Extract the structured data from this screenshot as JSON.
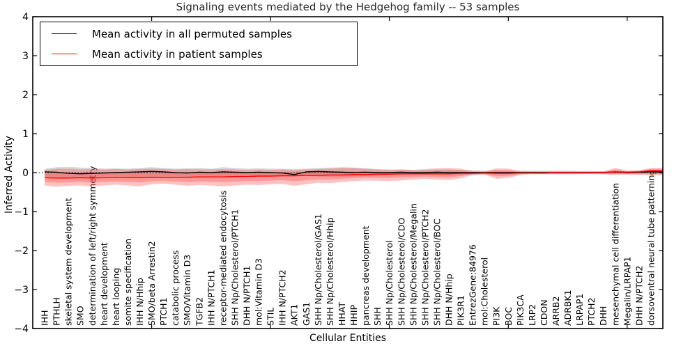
{
  "title": "Signaling events mediated by the Hedgehog family -- 53 samples",
  "legend": {
    "items": [
      {
        "label": "Mean activity in all permuted samples",
        "color": "#000000"
      },
      {
        "label": "Mean activity in patient samples",
        "color": "#ff0000"
      }
    ]
  },
  "colors": {
    "permuted_line": "#000000",
    "patient_line": "#ff0000",
    "permuted_band": "#999999",
    "patient_band": "#ff4040",
    "frame": "#000000"
  },
  "chart_data": {
    "type": "line",
    "title": "Signaling events mediated by the Hedgehog family -- 53 samples",
    "xlabel": "Cellular Entities",
    "ylabel": "Inferred Activity",
    "ylim": [
      -4,
      4
    ],
    "yticks": [
      -4,
      -3,
      -2,
      -1,
      0,
      1,
      2,
      3,
      4
    ],
    "grid": false,
    "legend_position": "upper left",
    "zero_line": 0,
    "x_major_tick_indices": [
      9,
      19,
      29,
      39,
      49
    ],
    "categories": [
      "IHH",
      "PTHLH",
      "skeletal system development",
      "SMO",
      "determination of left/right symmetry",
      "heart development",
      "heart looping",
      "somite specification",
      "IHH N/Hhip",
      "SMO/beta Arrestin2",
      "PTCH1",
      "catabolic process",
      "SMO/Vitamin D3",
      "TGFB2",
      "IHH N/PTCH1",
      "receptor-mediated endocytosis",
      "SHH Np/Cholesterol/PTCH1",
      "DHH N/PTCH1",
      "mol:Vitamin D3",
      "STIL",
      "IHH N/PTCH2",
      "AKT1",
      "GAS1",
      "SHH Np/Cholesterol/GAS1",
      "SHH Np/Cholesterol/Hhip",
      "HHAT",
      "HHIP",
      "pancreas development",
      "SHH",
      "SHH Np/Cholesterol",
      "SHH Np/Cholesterol/CDO",
      "SHH Np/Cholesterol/Megalin",
      "SHH Np/Cholesterol/PTCH2",
      "SHH Np/Cholesterol/BOC",
      "DHH N/Hhip",
      "PIK3R1",
      "EntrezGene:84976",
      "mol:Cholesterol",
      "PI3K",
      "BOC",
      "PIK3CA",
      "LRP2",
      "CDON",
      "ARRB2",
      "ADRBK1",
      "LRPAP1",
      "PTCH2",
      "DHH",
      "mesenchymal cell differentiation",
      "Megalin/LRPAP1",
      "DHH N/PTCH2",
      "dorsoventral neural tube patterning"
    ],
    "series": [
      {
        "name": "Mean activity in all permuted samples",
        "color": "#000000",
        "values": [
          0.02,
          0.01,
          -0.02,
          -0.03,
          -0.02,
          -0.01,
          0,
          0.01,
          0.02,
          0.03,
          0.02,
          0,
          -0.01,
          0.01,
          0,
          0.02,
          0.01,
          0,
          0.01,
          0,
          -0.01,
          -0.05,
          0.02,
          0.03,
          0.02,
          0.01,
          0,
          0.01,
          0,
          0,
          0.01,
          0,
          0,
          0.01,
          0,
          0,
          0,
          0,
          0,
          0,
          0,
          0,
          0,
          0,
          0,
          0,
          0,
          0,
          0.02,
          0,
          0.01,
          0.02
        ]
      },
      {
        "name": "Mean activity in patient samples",
        "color": "#ff0000",
        "values": [
          -0.13,
          -0.14,
          -0.14,
          -0.13,
          -0.14,
          -0.13,
          -0.12,
          -0.13,
          -0.13,
          -0.12,
          -0.12,
          -0.12,
          -0.12,
          -0.11,
          -0.11,
          -0.11,
          -0.1,
          -0.1,
          -0.09,
          -0.09,
          -0.08,
          -0.08,
          -0.07,
          -0.07,
          -0.06,
          -0.06,
          -0.05,
          -0.05,
          -0.04,
          -0.04,
          -0.03,
          -0.03,
          -0.03,
          -0.03,
          -0.03,
          -0.02,
          -0.02,
          -0.01,
          -0.02,
          -0.02,
          -0.01,
          -0.01,
          -0.01,
          0,
          0,
          0,
          0,
          0,
          0.02,
          0.01,
          0.02,
          0.05
        ]
      }
    ],
    "bands": [
      {
        "name": "permuted-samples-range",
        "color": "#999999",
        "opacity": 0.38,
        "upper": [
          0.1,
          0.14,
          0.15,
          0.13,
          0.12,
          0.1,
          0.11,
          0.1,
          0.12,
          0.14,
          0.12,
          0.1,
          0.11,
          0.12,
          0.1,
          0.14,
          0.12,
          0.1,
          0.11,
          0.1,
          0.1,
          0.09,
          0.1,
          0.12,
          0.13,
          0.14,
          0.13,
          0.11,
          0.09,
          0.08,
          0.08,
          0.07,
          0.07,
          0.08,
          0.08,
          0.07,
          0.06,
          0.05,
          0.06,
          0.06,
          0.05,
          0.05,
          0.05,
          0.05,
          0.05,
          0.04,
          0.04,
          0.04,
          0.05,
          0.04,
          0.05,
          0.06
        ],
        "lower": [
          -0.1,
          -0.13,
          -0.14,
          -0.12,
          -0.12,
          -0.1,
          -0.1,
          -0.11,
          -0.12,
          -0.11,
          -0.1,
          -0.1,
          -0.11,
          -0.11,
          -0.1,
          -0.12,
          -0.11,
          -0.1,
          -0.1,
          -0.09,
          -0.09,
          -0.1,
          -0.09,
          -0.1,
          -0.11,
          -0.11,
          -0.1,
          -0.09,
          -0.08,
          -0.07,
          -0.07,
          -0.06,
          -0.06,
          -0.07,
          -0.07,
          -0.06,
          -0.05,
          -0.05,
          -0.05,
          -0.05,
          -0.04,
          -0.04,
          -0.04,
          -0.04,
          -0.04,
          -0.04,
          -0.03,
          -0.03,
          -0.04,
          -0.03,
          -0.04,
          -0.05
        ]
      },
      {
        "name": "patient-samples-range",
        "color": "#ff4040",
        "opacity": 0.32,
        "upper": [
          0.07,
          0.1,
          0.1,
          0.08,
          0.09,
          0.08,
          0.09,
          0.08,
          0.09,
          0.1,
          0.09,
          0.08,
          0.09,
          0.08,
          0.08,
          0.09,
          0.08,
          0.07,
          0.08,
          0.07,
          0.08,
          0.07,
          0.08,
          0.09,
          0.1,
          0.12,
          0.12,
          0.1,
          0.08,
          0.07,
          0.08,
          0.07,
          0.09,
          0.11,
          0.12,
          0.1,
          0.04,
          0.03,
          0.11,
          0.1,
          0.04,
          0.03,
          0.03,
          0.03,
          0.03,
          0.03,
          0.03,
          0.03,
          0.12,
          0.05,
          0.06,
          0.12
        ],
        "lower": [
          -0.33,
          -0.36,
          -0.34,
          -0.33,
          -0.35,
          -0.33,
          -0.31,
          -0.33,
          -0.35,
          -0.3,
          -0.28,
          -0.31,
          -0.34,
          -0.32,
          -0.33,
          -0.35,
          -0.33,
          -0.31,
          -0.32,
          -0.3,
          -0.29,
          -0.34,
          -0.3,
          -0.26,
          -0.27,
          -0.24,
          -0.22,
          -0.2,
          -0.21,
          -0.22,
          -0.2,
          -0.18,
          -0.16,
          -0.18,
          -0.19,
          -0.15,
          -0.06,
          -0.05,
          -0.16,
          -0.14,
          -0.06,
          -0.04,
          -0.04,
          -0.04,
          -0.04,
          -0.04,
          -0.04,
          -0.04,
          -0.06,
          -0.05,
          -0.06,
          -0.06
        ]
      }
    ]
  }
}
